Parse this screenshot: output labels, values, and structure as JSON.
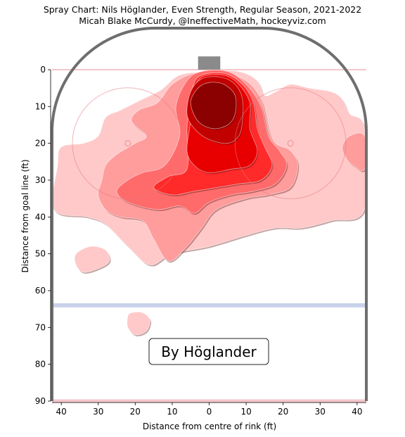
{
  "chart_data": {
    "type": "heatmap",
    "title": "Spray Chart: Nils Höglander, Even Strength, Regular Season, 2021-2022",
    "subtitle": "Micah Blake McCurdy, @IneffectiveMath, hockeyviz.com",
    "xlabel": "Distance from centre of rink (ft)",
    "ylabel": "Distance from goal line (ft)",
    "xlim": [
      -42.5,
      42.5
    ],
    "ylim": [
      0,
      90
    ],
    "x_ticks": [
      -40,
      -30,
      -20,
      -10,
      0,
      10,
      20,
      30,
      40
    ],
    "x_tick_labels": [
      "40",
      "30",
      "20",
      "10",
      "0",
      "10",
      "20",
      "30",
      "40"
    ],
    "y_ticks": [
      0,
      10,
      20,
      30,
      40,
      50,
      60,
      70,
      80,
      90
    ],
    "y_tick_labels": [
      "0",
      "10",
      "20",
      "30",
      "40",
      "50",
      "60",
      "70",
      "80",
      "90"
    ],
    "legend_label": "By Höglander",
    "legend_position": "bottom-center",
    "colors": {
      "level1": "#ffc9c9",
      "level2": "#ff9c9c",
      "level3": "#ff6b6b",
      "level4": "#ff2a2a",
      "level5": "#e80000",
      "level6": "#c10000",
      "core": "#8b0000",
      "rink_board": "#6e6e6e",
      "goal_line": "#f4c6cc",
      "blue_line": "#c8d2ea",
      "goal_net": "#8a8a8a"
    },
    "density_levels": [
      {
        "level": 1,
        "regions": [
          {
            "outline": [
              [
                -41,
                26
              ],
              [
                -40,
                21
              ],
              [
                -34,
                20
              ],
              [
                -30,
                18
              ],
              [
                -28,
                13
              ],
              [
                -24,
                11
              ],
              [
                -18,
                8
              ],
              [
                -13,
                5.5
              ],
              [
                -8,
                1.5
              ],
              [
                0,
                0.5
              ],
              [
                8,
                0.5
              ],
              [
                13,
                3
              ],
              [
                15,
                7
              ],
              [
                18,
                6
              ],
              [
                22,
                4
              ],
              [
                27,
                5
              ],
              [
                33,
                6
              ],
              [
                36,
                8
              ],
              [
                38,
                12
              ],
              [
                42,
                16
              ],
              [
                42,
                38
              ],
              [
                33,
                41
              ],
              [
                25,
                43
              ],
              [
                18,
                43
              ],
              [
                10,
                45
              ],
              [
                0,
                48
              ],
              [
                -10,
                50
              ],
              [
                -16,
                53
              ],
              [
                -22,
                48
              ],
              [
                -28,
                42
              ],
              [
                -33,
                40
              ],
              [
                -42,
                38
              ]
            ]
          },
          {
            "outline": [
              [
                -36,
                50
              ],
              [
                -32,
                48
              ],
              [
                -28,
                49
              ],
              [
                -27,
                52
              ],
              [
                -30,
                54
              ],
              [
                -34,
                55
              ],
              [
                -36,
                53
              ]
            ]
          },
          {
            "outline": [
              [
                -21,
                66
              ],
              [
                -18,
                66
              ],
              [
                -16,
                68
              ],
              [
                -17,
                71
              ],
              [
                -20,
                72
              ],
              [
                -22,
                70
              ],
              [
                -22,
                67
              ]
            ]
          }
        ]
      },
      {
        "level": 2,
        "regions": [
          {
            "outline": [
              [
                -29,
                30
              ],
              [
                -28,
                26
              ],
              [
                -25,
                23
              ],
              [
                -20,
                20
              ],
              [
                -17,
                18
              ],
              [
                -21,
                14
              ],
              [
                -19,
                11
              ],
              [
                -14,
                9
              ],
              [
                -10,
                4
              ],
              [
                -4,
                1
              ],
              [
                4,
                1
              ],
              [
                10,
                3
              ],
              [
                14,
                8
              ],
              [
                16,
                16
              ],
              [
                18,
                20
              ],
              [
                22,
                22
              ],
              [
                24,
                26
              ],
              [
                22,
                32
              ],
              [
                16,
                34
              ],
              [
                10,
                35
              ],
              [
                2,
                38
              ],
              [
                -2,
                43
              ],
              [
                -6,
                48
              ],
              [
                -11,
                52
              ],
              [
                -15,
                46
              ],
              [
                -18,
                41
              ],
              [
                -24,
                40
              ],
              [
                -28,
                38
              ],
              [
                -30,
                34
              ]
            ]
          },
          {
            "outline": [
              [
                36,
                21
              ],
              [
                38,
                18
              ],
              [
                42,
                18
              ],
              [
                42,
                27
              ],
              [
                39,
                26
              ],
              [
                37,
                24
              ]
            ]
          }
        ]
      },
      {
        "level": 3,
        "regions": [
          {
            "outline": [
              [
                -25,
                33
              ],
              [
                -22,
                30
              ],
              [
                -18,
                28
              ],
              [
                -12,
                26
              ],
              [
                -8,
                18
              ],
              [
                -9,
                10
              ],
              [
                -6,
                3
              ],
              [
                -2,
                0.5
              ],
              [
                5,
                0.5
              ],
              [
                10,
                4
              ],
              [
                14,
                10
              ],
              [
                16,
                18
              ],
              [
                19,
                22
              ],
              [
                21,
                26
              ],
              [
                18,
                31
              ],
              [
                12,
                33
              ],
              [
                6,
                34
              ],
              [
                0,
                36
              ],
              [
                -4,
                39
              ],
              [
                -8,
                37
              ],
              [
                -14,
                38
              ],
              [
                -22,
                36
              ]
            ]
          }
        ]
      },
      {
        "level": 4,
        "regions": [
          {
            "outline": [
              [
                -15,
                32
              ],
              [
                -11,
                29
              ],
              [
                -6,
                27
              ],
              [
                -6,
                16
              ],
              [
                -5,
                8
              ],
              [
                -3,
                2
              ],
              [
                4,
                1
              ],
              [
                9,
                4
              ],
              [
                12,
                9
              ],
              [
                13,
                16
              ],
              [
                15,
                21
              ],
              [
                17,
                26
              ],
              [
                14,
                30
              ],
              [
                8,
                31
              ],
              [
                2,
                32
              ],
              [
                -4,
                33
              ],
              [
                -10,
                34
              ]
            ]
          }
        ]
      },
      {
        "level": 5,
        "regions": [
          {
            "outline": [
              [
                -6,
                22
              ],
              [
                -5,
                14
              ],
              [
                -4,
                6
              ],
              [
                -2,
                2
              ],
              [
                4,
                1.5
              ],
              [
                8,
                4
              ],
              [
                11,
                9
              ],
              [
                11,
                16
              ],
              [
                13,
                22
              ],
              [
                11,
                26
              ],
              [
                6,
                27
              ],
              [
                0,
                28
              ],
              [
                -4,
                26
              ]
            ]
          }
        ]
      },
      {
        "level": 6,
        "regions": [
          {
            "outline": [
              [
                -6,
                12
              ],
              [
                -5,
                6
              ],
              [
                -2,
                2.5
              ],
              [
                3,
                2
              ],
              [
                7,
                4
              ],
              [
                9,
                8
              ],
              [
                9,
                14
              ],
              [
                8,
                18
              ],
              [
                5,
                20
              ],
              [
                0,
                19
              ],
              [
                -4,
                16
              ]
            ]
          }
        ]
      },
      {
        "level": 7,
        "regions": [
          {
            "outline": [
              [
                -5,
                9
              ],
              [
                -3,
                5
              ],
              [
                0,
                3.5
              ],
              [
                4,
                4
              ],
              [
                7,
                7
              ],
              [
                7,
                12
              ],
              [
                5,
                15
              ],
              [
                1,
                16
              ],
              [
                -3,
                14
              ]
            ]
          }
        ]
      }
    ]
  }
}
